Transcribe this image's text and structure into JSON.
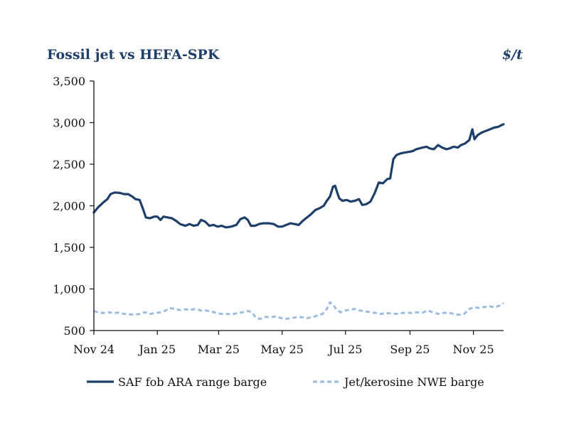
{
  "chart_data": {
    "type": "line",
    "title": "Fossil jet vs HEFA-SPK",
    "unit": "$/t",
    "x_range": [
      "2024-11-01",
      "2025-11-30"
    ],
    "ylim": [
      500,
      3500
    ],
    "y_ticks": [
      500,
      1000,
      1500,
      2000,
      2500,
      3000,
      3500
    ],
    "y_tick_labels": [
      "500",
      "1,000",
      "1,500",
      "2,000",
      "2,500",
      "3,000",
      "3,500"
    ],
    "x_ticks": [
      {
        "date": "2024-11-01",
        "label": "Nov 24"
      },
      {
        "date": "2025-01-01",
        "label": "Jan 25"
      },
      {
        "date": "2025-03-01",
        "label": "Mar 25"
      },
      {
        "date": "2025-05-01",
        "label": "May 25"
      },
      {
        "date": "2025-07-01",
        "label": "Jul 25"
      },
      {
        "date": "2025-09-01",
        "label": "Sep 25"
      },
      {
        "date": "2025-11-01",
        "label": "Nov 25"
      }
    ],
    "grid": false,
    "legend_position": "bottom",
    "series": [
      {
        "name": "SAF fob ARA range barge",
        "color": "#1f3f6b",
        "style": "solid",
        "points": [
          [
            "2024-11-01",
            1920
          ],
          [
            "2024-11-05",
            1980
          ],
          [
            "2024-11-10",
            2040
          ],
          [
            "2024-11-14",
            2080
          ],
          [
            "2024-11-17",
            2140
          ],
          [
            "2024-11-21",
            2160
          ],
          [
            "2024-11-26",
            2155
          ],
          [
            "2024-11-30",
            2140
          ],
          [
            "2024-12-04",
            2140
          ],
          [
            "2024-12-08",
            2110
          ],
          [
            "2024-12-11",
            2080
          ],
          [
            "2024-12-15",
            2070
          ],
          [
            "2024-12-18",
            1970
          ],
          [
            "2024-12-21",
            1860
          ],
          [
            "2024-12-25",
            1850
          ],
          [
            "2024-12-29",
            1870
          ],
          [
            "2025-01-01",
            1870
          ],
          [
            "2025-01-04",
            1830
          ],
          [
            "2025-01-07",
            1870
          ],
          [
            "2025-01-11",
            1860
          ],
          [
            "2025-01-15",
            1850
          ],
          [
            "2025-01-19",
            1820
          ],
          [
            "2025-01-23",
            1780
          ],
          [
            "2025-01-28",
            1760
          ],
          [
            "2025-02-01",
            1780
          ],
          [
            "2025-02-05",
            1760
          ],
          [
            "2025-02-09",
            1770
          ],
          [
            "2025-02-12",
            1830
          ],
          [
            "2025-02-16",
            1810
          ],
          [
            "2025-02-20",
            1760
          ],
          [
            "2025-02-24",
            1770
          ],
          [
            "2025-02-28",
            1750
          ],
          [
            "2025-03-04",
            1760
          ],
          [
            "2025-03-08",
            1740
          ],
          [
            "2025-03-13",
            1750
          ],
          [
            "2025-03-18",
            1770
          ],
          [
            "2025-03-22",
            1840
          ],
          [
            "2025-03-26",
            1860
          ],
          [
            "2025-03-29",
            1830
          ],
          [
            "2025-04-01",
            1760
          ],
          [
            "2025-04-05",
            1760
          ],
          [
            "2025-04-09",
            1780
          ],
          [
            "2025-04-13",
            1790
          ],
          [
            "2025-04-18",
            1790
          ],
          [
            "2025-04-23",
            1780
          ],
          [
            "2025-04-27",
            1750
          ],
          [
            "2025-05-01",
            1750
          ],
          [
            "2025-05-05",
            1770
          ],
          [
            "2025-05-09",
            1790
          ],
          [
            "2025-05-13",
            1780
          ],
          [
            "2025-05-17",
            1770
          ],
          [
            "2025-05-21",
            1820
          ],
          [
            "2025-05-25",
            1860
          ],
          [
            "2025-05-29",
            1900
          ],
          [
            "2025-06-02",
            1950
          ],
          [
            "2025-06-06",
            1970
          ],
          [
            "2025-06-10",
            2000
          ],
          [
            "2025-06-13",
            2060
          ],
          [
            "2025-06-16",
            2110
          ],
          [
            "2025-06-19",
            2230
          ],
          [
            "2025-06-21",
            2240
          ],
          [
            "2025-06-23",
            2160
          ],
          [
            "2025-06-25",
            2090
          ],
          [
            "2025-06-28",
            2060
          ],
          [
            "2025-07-02",
            2070
          ],
          [
            "2025-07-06",
            2050
          ],
          [
            "2025-07-10",
            2060
          ],
          [
            "2025-07-14",
            2080
          ],
          [
            "2025-07-17",
            2010
          ],
          [
            "2025-07-21",
            2020
          ],
          [
            "2025-07-25",
            2050
          ],
          [
            "2025-07-29",
            2150
          ],
          [
            "2025-08-02",
            2280
          ],
          [
            "2025-08-06",
            2270
          ],
          [
            "2025-08-10",
            2320
          ],
          [
            "2025-08-13",
            2330
          ],
          [
            "2025-08-16",
            2560
          ],
          [
            "2025-08-19",
            2610
          ],
          [
            "2025-08-23",
            2630
          ],
          [
            "2025-08-27",
            2640
          ],
          [
            "2025-09-01",
            2650
          ],
          [
            "2025-09-04",
            2660
          ],
          [
            "2025-09-07",
            2680
          ],
          [
            "2025-09-10",
            2690
          ],
          [
            "2025-09-13",
            2700
          ],
          [
            "2025-09-17",
            2710
          ],
          [
            "2025-09-20",
            2690
          ],
          [
            "2025-09-24",
            2680
          ],
          [
            "2025-09-28",
            2730
          ],
          [
            "2025-10-02",
            2700
          ],
          [
            "2025-10-06",
            2680
          ],
          [
            "2025-10-09",
            2690
          ],
          [
            "2025-10-13",
            2710
          ],
          [
            "2025-10-17",
            2700
          ],
          [
            "2025-10-20",
            2730
          ],
          [
            "2025-10-24",
            2750
          ],
          [
            "2025-10-28",
            2790
          ],
          [
            "2025-10-31",
            2920
          ],
          [
            "2025-11-02",
            2800
          ],
          [
            "2025-11-05",
            2850
          ],
          [
            "2025-11-09",
            2880
          ],
          [
            "2025-11-13",
            2900
          ],
          [
            "2025-11-17",
            2920
          ],
          [
            "2025-11-21",
            2940
          ],
          [
            "2025-11-25",
            2950
          ],
          [
            "2025-11-28",
            2970
          ],
          [
            "2025-11-30",
            2980
          ]
        ]
      },
      {
        "name": "Jet/kerosine NWE barge",
        "color": "#9dbde0",
        "style": "dashed",
        "points": [
          [
            "2024-11-01",
            735
          ],
          [
            "2024-11-05",
            720
          ],
          [
            "2024-11-10",
            710
          ],
          [
            "2024-11-15",
            720
          ],
          [
            "2024-11-20",
            710
          ],
          [
            "2024-11-25",
            715
          ],
          [
            "2024-11-30",
            700
          ],
          [
            "2024-12-05",
            695
          ],
          [
            "2024-12-10",
            690
          ],
          [
            "2024-12-15",
            700
          ],
          [
            "2024-12-20",
            720
          ],
          [
            "2024-12-25",
            700
          ],
          [
            "2024-12-30",
            710
          ],
          [
            "2025-01-04",
            720
          ],
          [
            "2025-01-09",
            740
          ],
          [
            "2025-01-13",
            770
          ],
          [
            "2025-01-18",
            760
          ],
          [
            "2025-01-23",
            745
          ],
          [
            "2025-01-28",
            755
          ],
          [
            "2025-02-02",
            750
          ],
          [
            "2025-02-07",
            760
          ],
          [
            "2025-02-12",
            740
          ],
          [
            "2025-02-17",
            740
          ],
          [
            "2025-02-22",
            730
          ],
          [
            "2025-02-27",
            710
          ],
          [
            "2025-03-04",
            700
          ],
          [
            "2025-03-09",
            700
          ],
          [
            "2025-03-14",
            695
          ],
          [
            "2025-03-19",
            710
          ],
          [
            "2025-03-24",
            720
          ],
          [
            "2025-03-29",
            735
          ],
          [
            "2025-04-02",
            720
          ],
          [
            "2025-04-06",
            650
          ],
          [
            "2025-04-10",
            640
          ],
          [
            "2025-04-15",
            665
          ],
          [
            "2025-04-20",
            660
          ],
          [
            "2025-04-25",
            670
          ],
          [
            "2025-04-30",
            650
          ],
          [
            "2025-05-05",
            640
          ],
          [
            "2025-05-10",
            650
          ],
          [
            "2025-05-15",
            660
          ],
          [
            "2025-05-20",
            660
          ],
          [
            "2025-05-25",
            650
          ],
          [
            "2025-05-30",
            660
          ],
          [
            "2025-06-04",
            680
          ],
          [
            "2025-06-09",
            700
          ],
          [
            "2025-06-13",
            760
          ],
          [
            "2025-06-16",
            840
          ],
          [
            "2025-06-19",
            810
          ],
          [
            "2025-06-22",
            760
          ],
          [
            "2025-06-26",
            720
          ],
          [
            "2025-06-30",
            740
          ],
          [
            "2025-07-05",
            750
          ],
          [
            "2025-07-10",
            760
          ],
          [
            "2025-07-15",
            740
          ],
          [
            "2025-07-20",
            730
          ],
          [
            "2025-07-25",
            720
          ],
          [
            "2025-07-30",
            710
          ],
          [
            "2025-08-04",
            700
          ],
          [
            "2025-08-09",
            710
          ],
          [
            "2025-08-14",
            705
          ],
          [
            "2025-08-19",
            700
          ],
          [
            "2025-08-24",
            710
          ],
          [
            "2025-08-29",
            715
          ],
          [
            "2025-09-03",
            710
          ],
          [
            "2025-09-08",
            720
          ],
          [
            "2025-09-13",
            715
          ],
          [
            "2025-09-18",
            740
          ],
          [
            "2025-09-23",
            720
          ],
          [
            "2025-09-28",
            700
          ],
          [
            "2025-10-03",
            710
          ],
          [
            "2025-10-08",
            715
          ],
          [
            "2025-10-13",
            700
          ],
          [
            "2025-10-18",
            690
          ],
          [
            "2025-10-23",
            700
          ],
          [
            "2025-10-28",
            760
          ],
          [
            "2025-11-02",
            780
          ],
          [
            "2025-11-07",
            770
          ],
          [
            "2025-11-12",
            785
          ],
          [
            "2025-11-17",
            790
          ],
          [
            "2025-11-22",
            780
          ],
          [
            "2025-11-26",
            800
          ],
          [
            "2025-11-30",
            830
          ]
        ]
      }
    ]
  }
}
